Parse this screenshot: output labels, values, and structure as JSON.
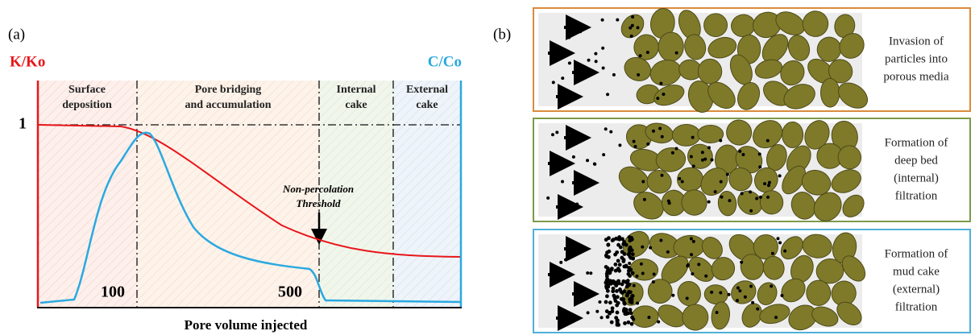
{
  "panel_a": {
    "label": "(a)",
    "left_axis_label": "K/Ko",
    "right_axis_label": "C/Co",
    "regions": [
      {
        "lines": [
          "Surface",
          "deposition"
        ]
      },
      {
        "lines": [
          "Pore bridging",
          "and accumulation"
        ]
      },
      {
        "lines": [
          "Internal",
          "cake"
        ]
      },
      {
        "lines": [
          "External",
          "cake"
        ]
      }
    ],
    "reference_label": "1",
    "markers": [
      "100",
      "500"
    ],
    "annotation": [
      "Non-percolation",
      "Threshold"
    ],
    "x_axis_label": "Pore volume injected"
  },
  "panel_b": {
    "label": "(b)",
    "stages": [
      {
        "lines": [
          "Invasion of",
          "particles into",
          "porous media"
        ]
      },
      {
        "lines": [
          "Formation of",
          "deep bed",
          "(internal)",
          "filtration"
        ]
      },
      {
        "lines": [
          "Formation of",
          "mud cake",
          "(external)",
          "filtration"
        ]
      }
    ]
  }
}
